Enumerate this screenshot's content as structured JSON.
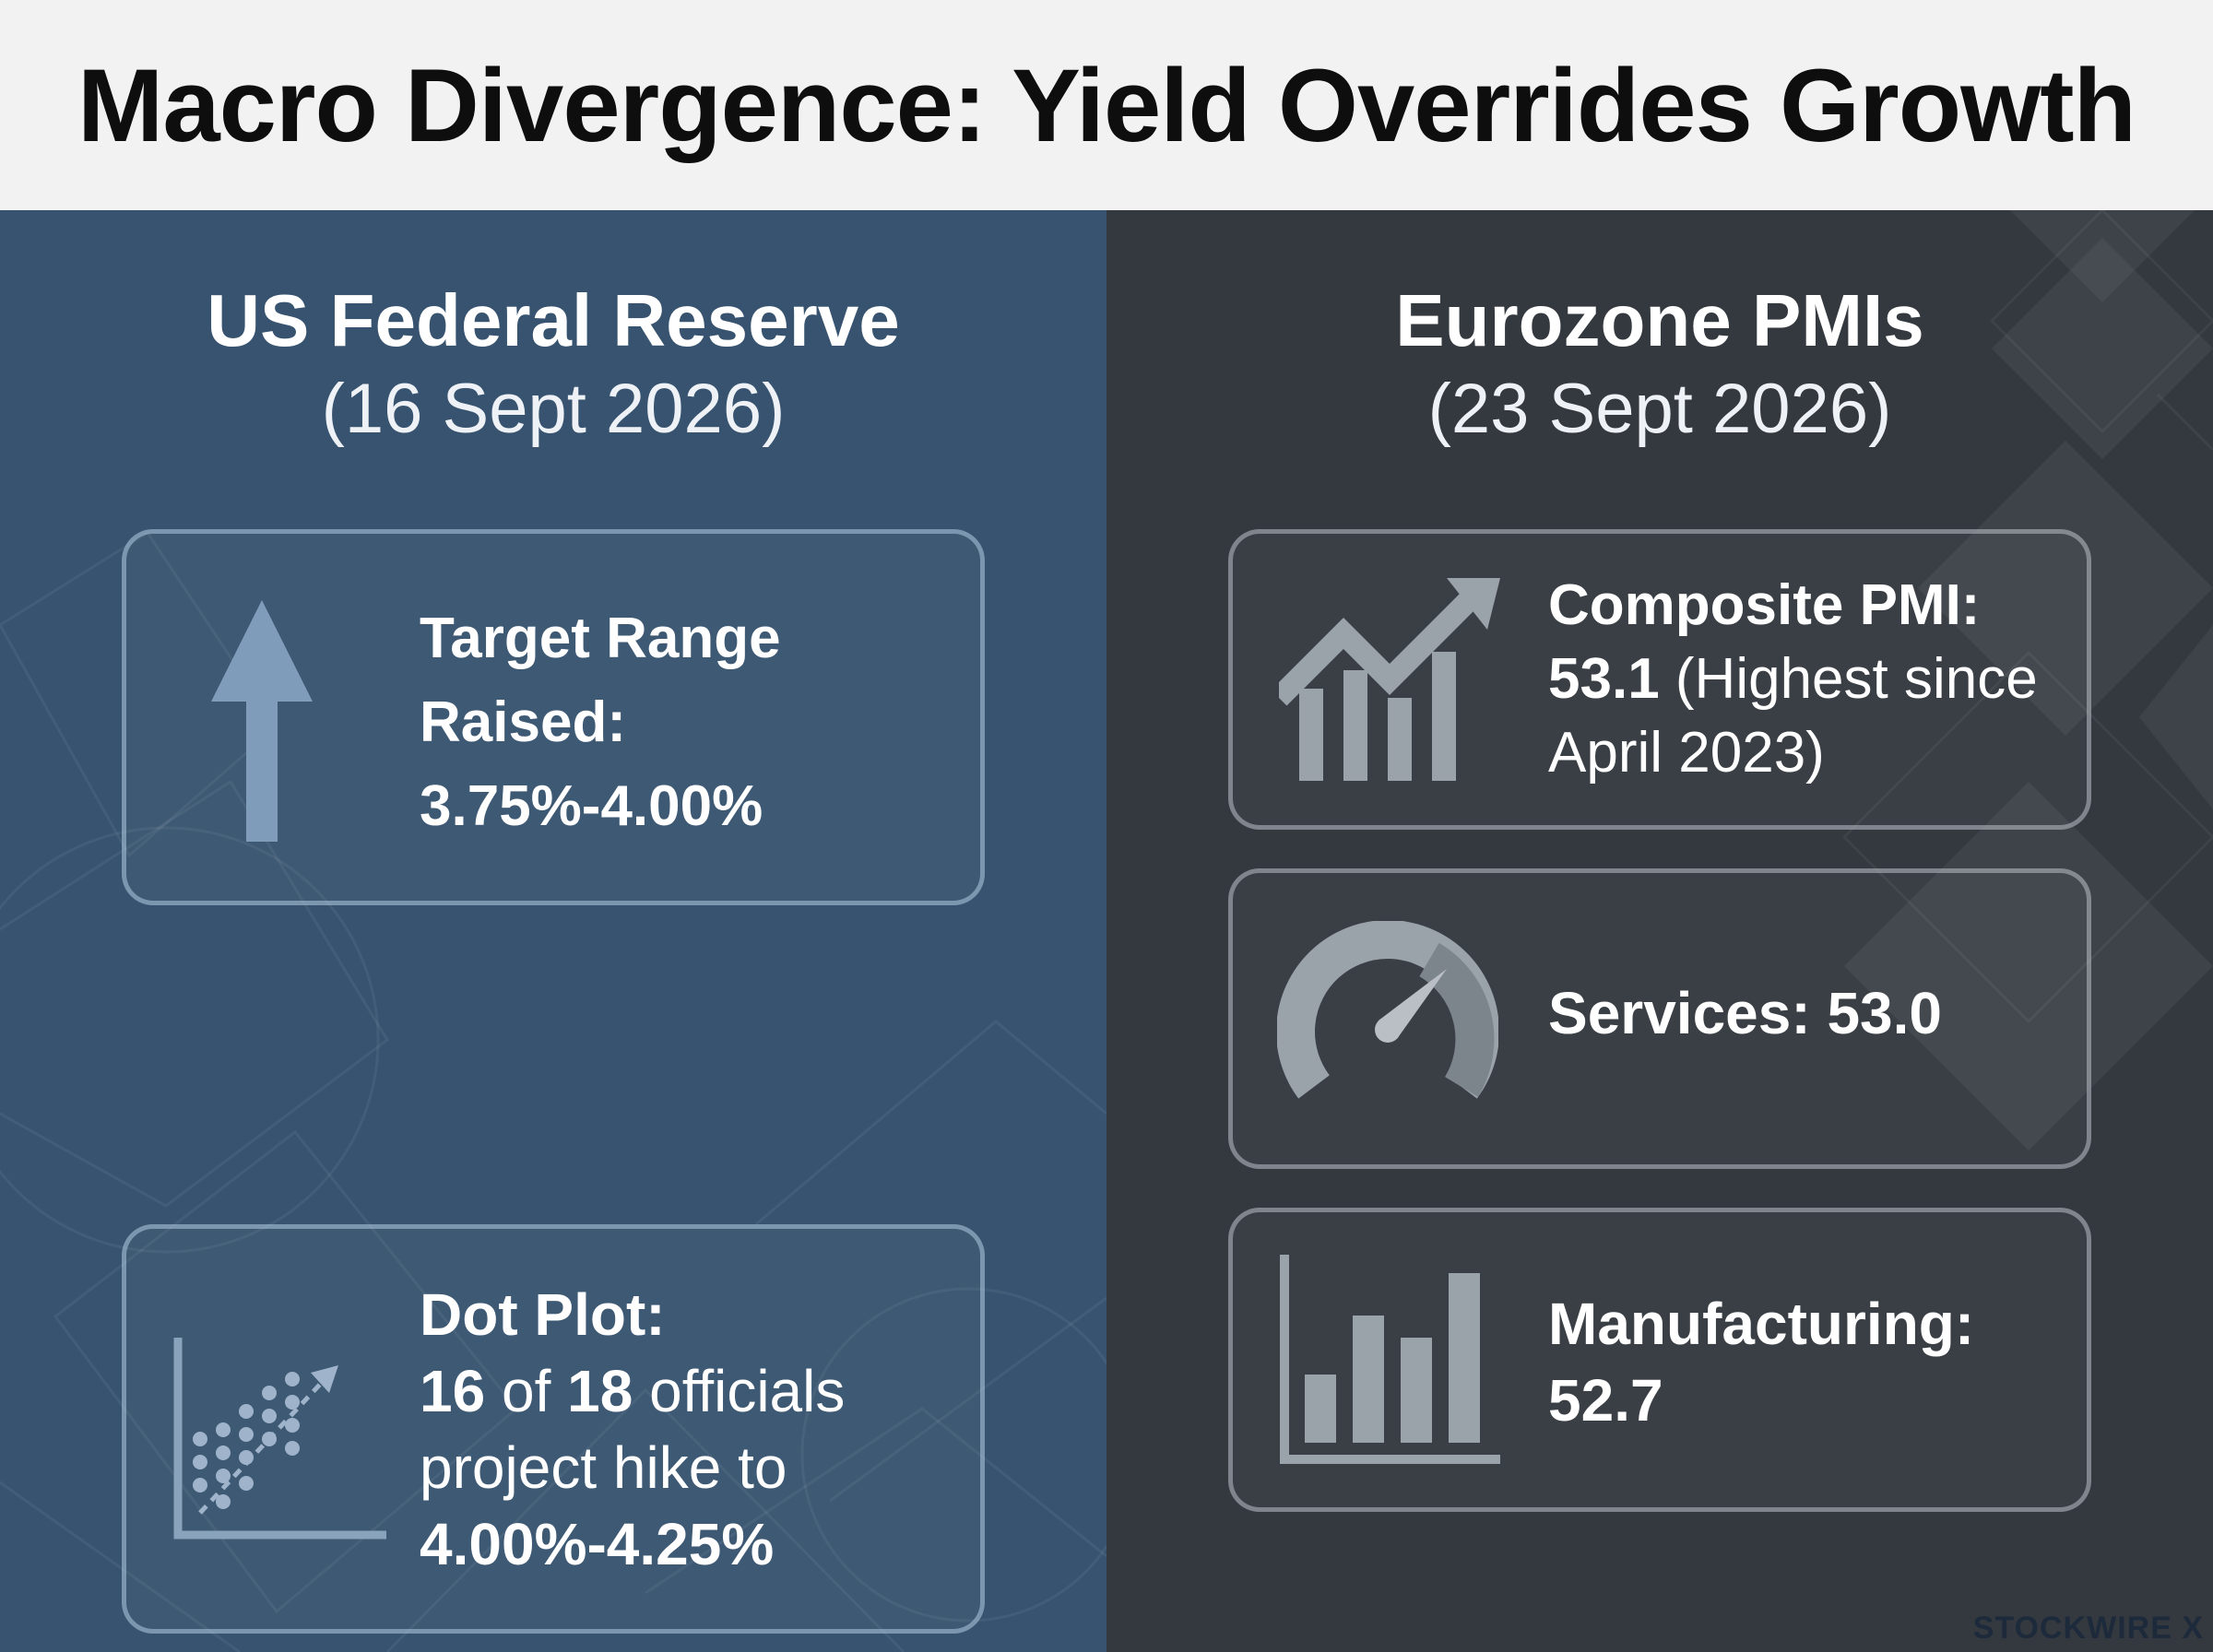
{
  "title": "Macro Divergence: Yield Overrides Growth",
  "left_panel": {
    "title": "US Federal Reserve",
    "date": "(16 Sept 2026)",
    "cards": {
      "target": {
        "icon": "arrow-up-icon",
        "line1": "Target Range",
        "line2": "Raised:",
        "line3": "3.75%-4.00%"
      },
      "dotplot": {
        "icon": "dot-plot-icon",
        "heading": "Dot Plot:",
        "count": "16",
        "of": " of ",
        "total": "18",
        "officials": " officials",
        "line3": "project hike to",
        "line4": "4.00%-4.25%"
      }
    }
  },
  "right_panel": {
    "title": "Eurozone PMIs",
    "date": "(23 Sept 2026)",
    "cards": {
      "composite": {
        "icon": "trend-chart-icon",
        "label": "Composite PMI:",
        "value": "53.1",
        "note_a": " (Highest since",
        "note_b": "April 2023)"
      },
      "services": {
        "icon": "gauge-icon",
        "label": "Services: 53.0"
      },
      "manufacturing": {
        "icon": "bar-chart-icon",
        "label": "Manufacturing:",
        "value": "52.7"
      }
    }
  },
  "brand": "STOCKWIRE X",
  "colors": {
    "us_panel": "#37536f",
    "eu_panel": "#33393f",
    "header": "#f2f2f2",
    "us_icon": "#7f9cba",
    "eu_icon": "#9ba3aa"
  }
}
